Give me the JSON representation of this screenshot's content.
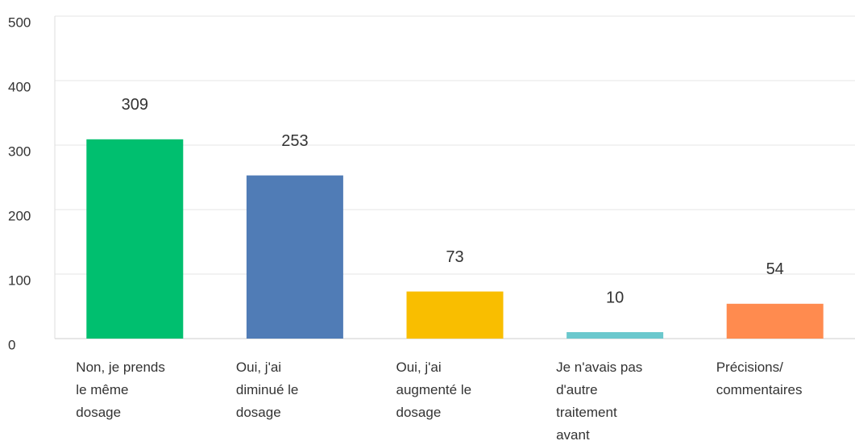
{
  "chart_data": {
    "type": "bar",
    "categories": [
      "Non, je prends le même dosage",
      "Oui, j'ai diminué le dosage",
      "Oui, j'ai augmenté le dosage",
      "Je n'avais pas d'autre traitement avant",
      "Précisions/ commentaires"
    ],
    "values": [
      309,
      253,
      73,
      10,
      54
    ],
    "colors": [
      "#00bf6f",
      "#507cb6",
      "#f9be00",
      "#6bc8cd",
      "#ff8b4f"
    ],
    "ylim": [
      0,
      500
    ],
    "yticks": [
      0,
      100,
      200,
      300,
      400,
      500
    ],
    "grid": true
  }
}
